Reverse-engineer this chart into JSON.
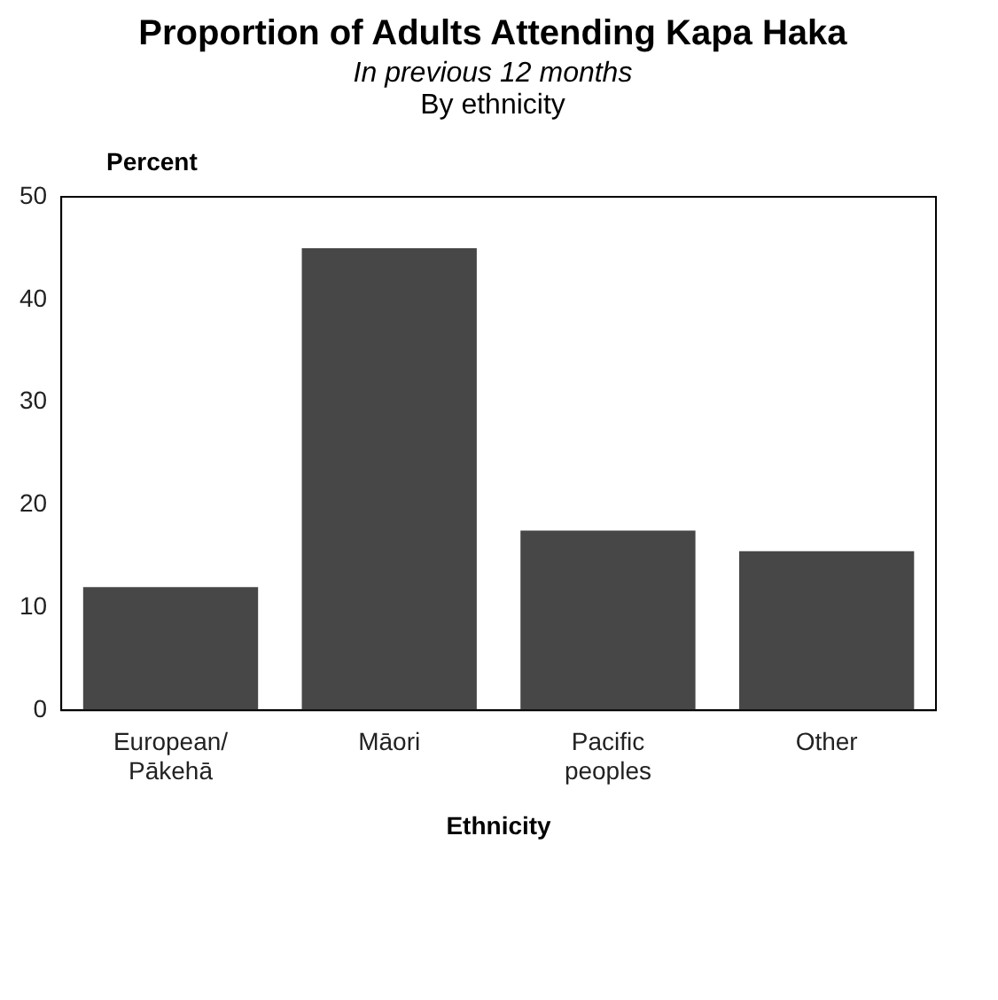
{
  "chart_data": {
    "type": "bar",
    "title": "Proportion of Adults Attending Kapa Haka",
    "subtitle": "In previous 12 months",
    "annotations": [
      "By ethnicity"
    ],
    "ylabel": "Percent",
    "xlabel": "Ethnicity",
    "categories": [
      "European/ Pākehā",
      "Māori",
      "Pacific peoples",
      "Other"
    ],
    "values": [
      12,
      45,
      17.5,
      15.5
    ],
    "color": "#474747",
    "ylim": [
      0,
      50
    ],
    "yticks": [
      0,
      10,
      20,
      30,
      40,
      50
    ],
    "grid": false,
    "legend": false
  }
}
